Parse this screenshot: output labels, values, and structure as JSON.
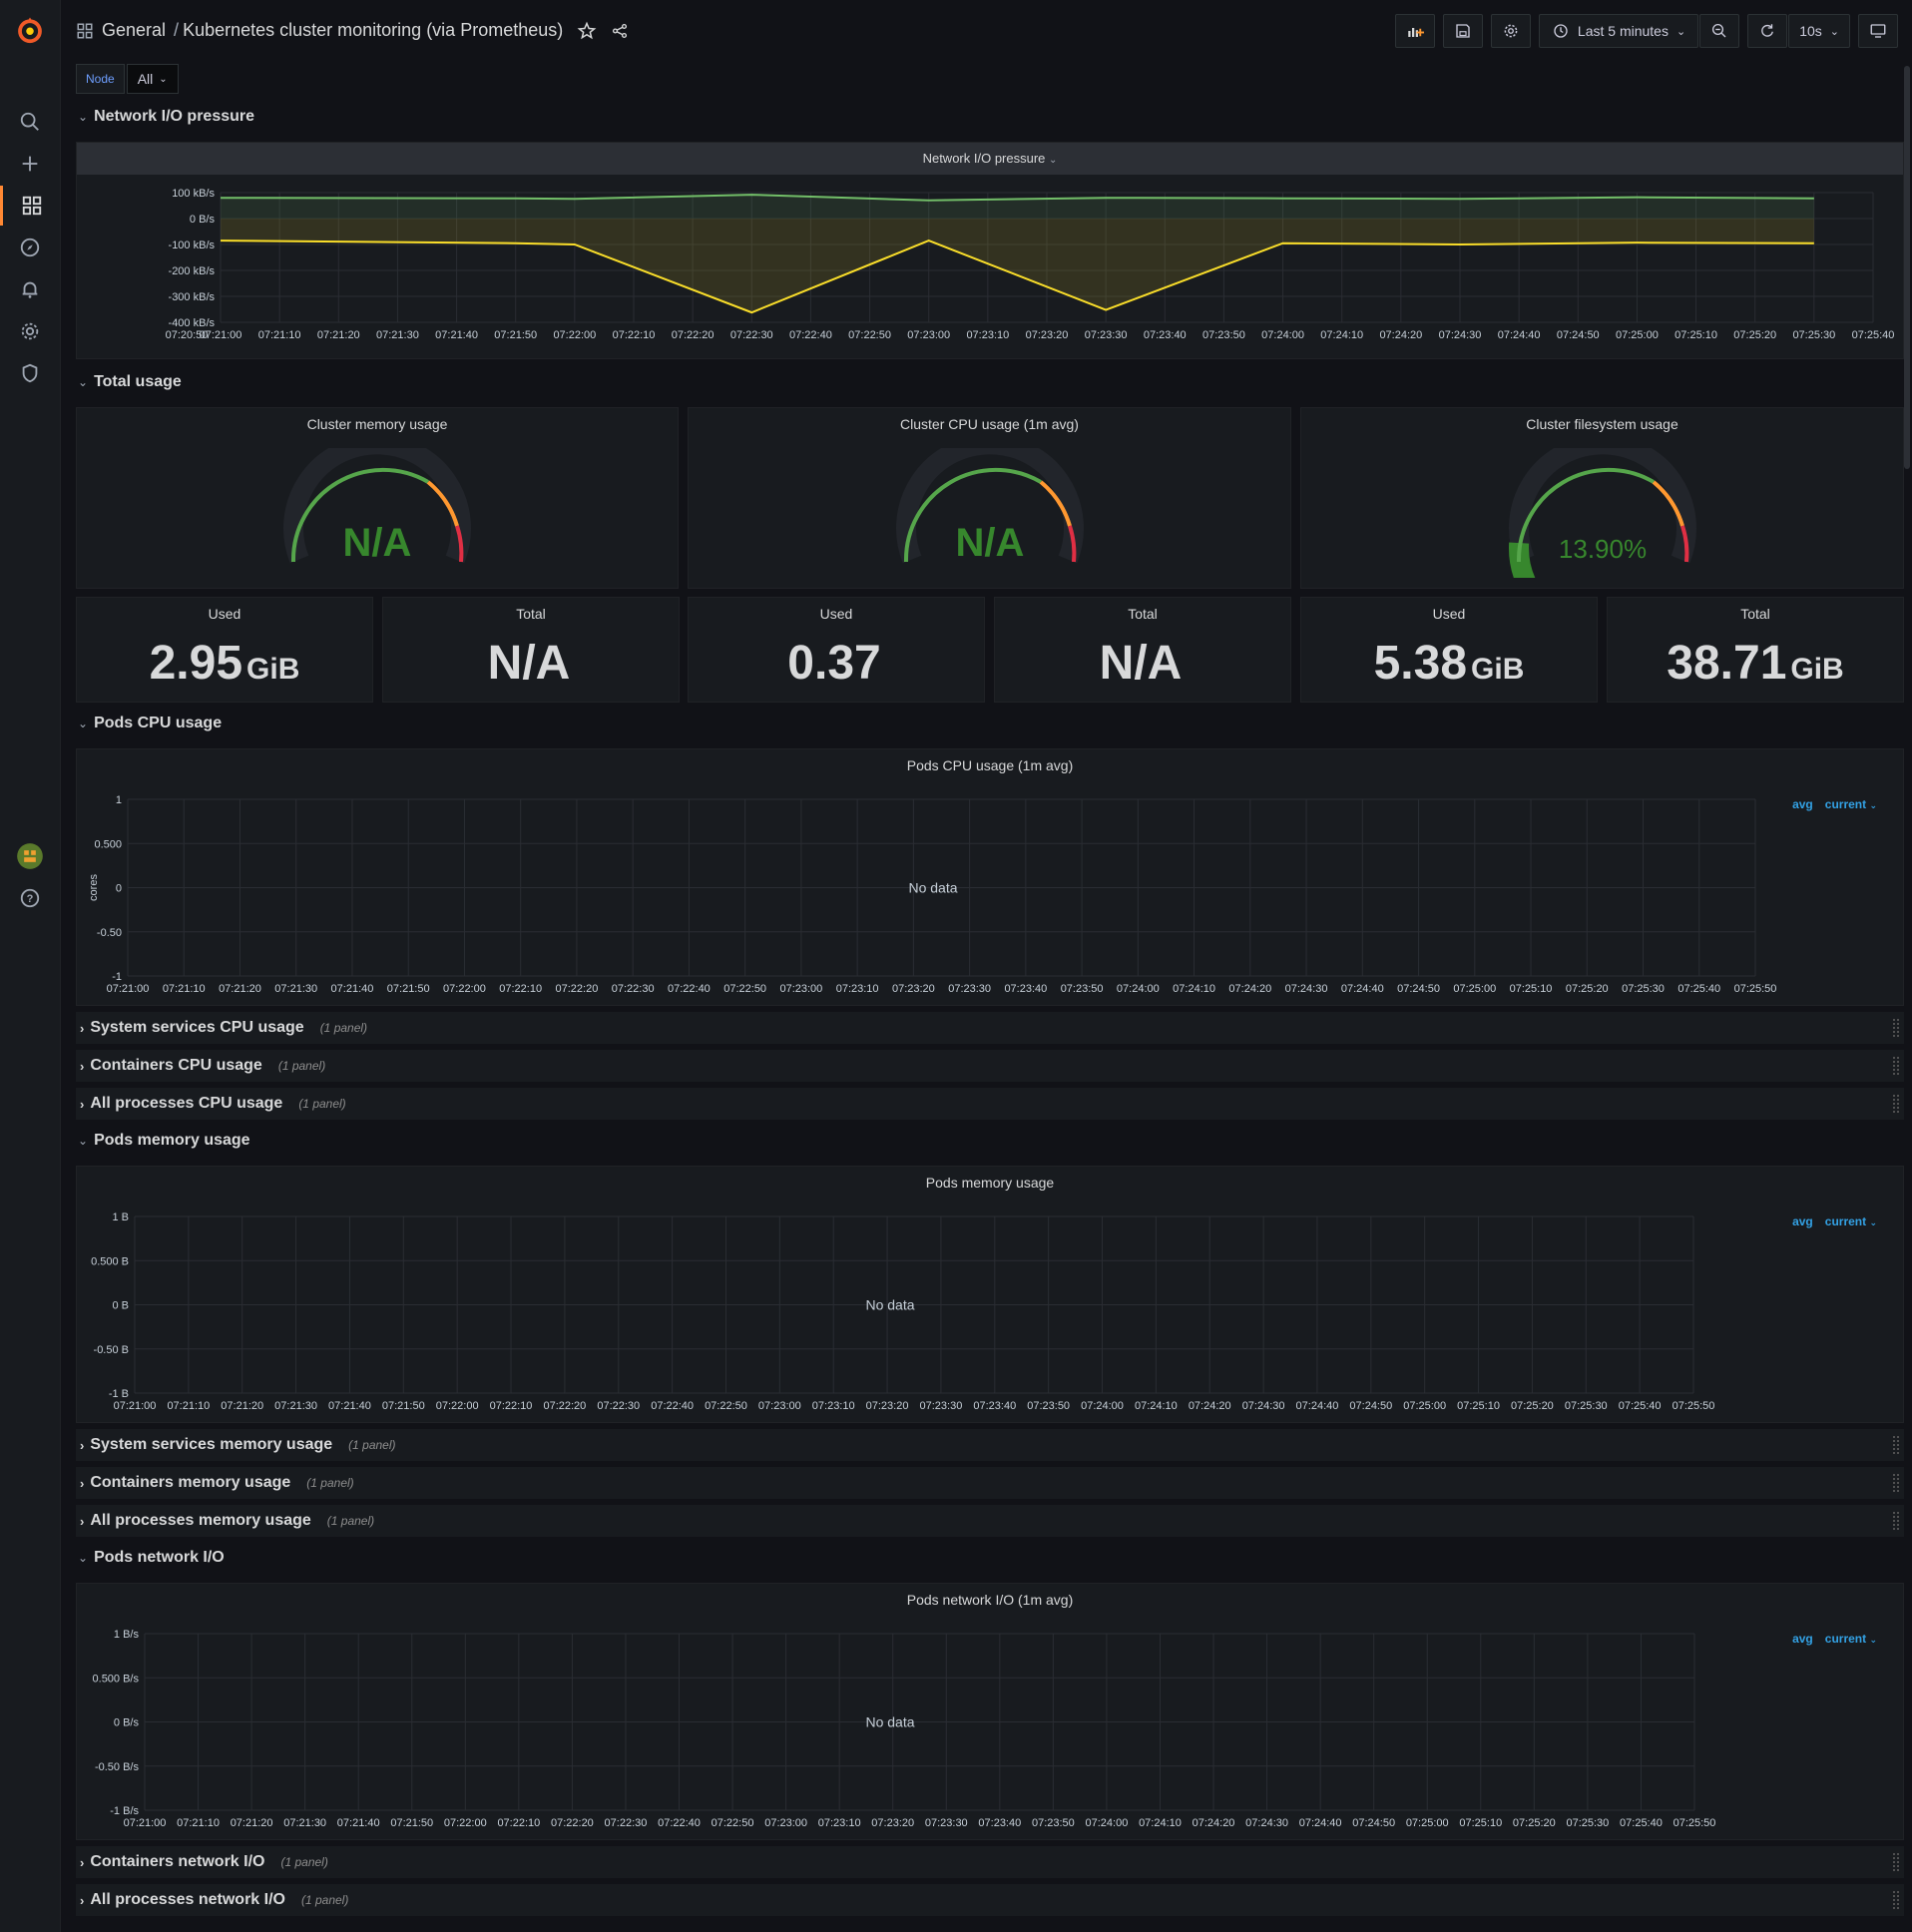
{
  "breadcrumb": {
    "folder": "General",
    "separator": "/",
    "dashboard": "Kubernetes cluster monitoring (via Prometheus)"
  },
  "toolbar": {
    "time_range": "Last 5 minutes",
    "refresh_interval": "10s"
  },
  "variables": {
    "node_label": "Node",
    "node_value": "All"
  },
  "rows": {
    "network": "Network I/O pressure",
    "total": "Total usage",
    "pods_cpu": "Pods CPU usage",
    "system_cpu": "System services CPU usage",
    "containers_cpu": "Containers CPU usage",
    "all_cpu": "All processes CPU usage",
    "pods_mem": "Pods memory usage",
    "system_mem": "System services memory usage",
    "containers_mem": "Containers memory usage",
    "all_mem": "All processes memory usage",
    "pods_net": "Pods network I/O",
    "containers_net": "Containers network I/O",
    "all_net": "All processes network I/O",
    "panel_count": "(1 panel)"
  },
  "panels": {
    "network_title": "Network I/O pressure",
    "mem_gauge_title": "Cluster memory usage",
    "mem_gauge_value": "N/A",
    "cpu_gauge_title": "Cluster CPU usage (1m avg)",
    "cpu_gauge_value": "N/A",
    "fs_gauge_title": "Cluster filesystem usage",
    "fs_gauge_value": "13.90%",
    "fs_gauge_percent": 13.9,
    "pods_cpu_title": "Pods CPU usage (1m avg)",
    "pods_mem_title": "Pods memory usage",
    "pods_net_title": "Pods network I/O (1m avg)",
    "no_data": "No data",
    "legend_avg": "avg",
    "legend_current": "current"
  },
  "stats": [
    {
      "title": "Used",
      "value": "2.95",
      "unit": "GiB"
    },
    {
      "title": "Total",
      "value": "N/A",
      "unit": ""
    },
    {
      "title": "Used",
      "value": "0.37",
      "unit": ""
    },
    {
      "title": "Total",
      "value": "N/A",
      "unit": ""
    },
    {
      "title": "Used",
      "value": "5.38",
      "unit": "GiB"
    },
    {
      "title": "Total",
      "value": "38.71",
      "unit": "GiB"
    }
  ],
  "colors": {
    "green": "#73bf69",
    "yellow": "#fade2a",
    "orange": "#ff9830",
    "red": "#f2495c",
    "link": "#33a2e5",
    "gauge_text": "#37872d"
  },
  "chart_data": [
    {
      "type": "line",
      "title": "Network I/O pressure",
      "x": [
        "07:20:50",
        "07:21:00",
        "07:21:10",
        "07:21:20",
        "07:21:30",
        "07:21:40",
        "07:21:50",
        "07:22:00",
        "07:22:10",
        "07:22:20",
        "07:22:30",
        "07:22:40",
        "07:22:50",
        "07:23:00",
        "07:23:10",
        "07:23:20",
        "07:23:30",
        "07:23:40",
        "07:23:50",
        "07:24:00",
        "07:24:10",
        "07:24:20",
        "07:24:30",
        "07:24:40",
        "07:24:50",
        "07:25:00",
        "07:25:10",
        "07:25:20",
        "07:25:30",
        "07:25:40"
      ],
      "yticks": [
        "100 kB/s",
        "0 B/s",
        "-100 kB/s",
        "-200 kB/s",
        "-300 kB/s",
        "-400 kB/s"
      ],
      "ylim": [
        -400,
        100
      ],
      "series": [
        {
          "color": "#73bf69",
          "x": [
            "07:20:50",
            "07:21:50",
            "07:22:00",
            "07:22:30",
            "07:23:00",
            "07:23:30",
            "07:24:00",
            "07:24:30",
            "07:25:00",
            "07:25:30"
          ],
          "values": [
            80,
            78,
            76,
            92,
            70,
            80,
            78,
            76,
            82,
            78
          ]
        },
        {
          "color": "#fade2a",
          "x": [
            "07:20:50",
            "07:21:50",
            "07:22:00",
            "07:22:30",
            "07:23:00",
            "07:23:30",
            "07:24:00",
            "07:24:30",
            "07:25:00",
            "07:25:30"
          ],
          "values": [
            -85,
            -95,
            -100,
            -362,
            -85,
            -352,
            -95,
            -100,
            -93,
            -95
          ]
        }
      ]
    },
    {
      "type": "line",
      "title": "Pods CPU usage (1m avg)",
      "ylabel": "cores",
      "yticks": [
        "1",
        "0.500",
        "0",
        "-0.50",
        "-1"
      ],
      "x": [
        "07:21:00",
        "07:21:10",
        "07:21:20",
        "07:21:30",
        "07:21:40",
        "07:21:50",
        "07:22:00",
        "07:22:10",
        "07:22:20",
        "07:22:30",
        "07:22:40",
        "07:22:50",
        "07:23:00",
        "07:23:10",
        "07:23:20",
        "07:23:30",
        "07:23:40",
        "07:23:50",
        "07:24:00",
        "07:24:10",
        "07:24:20",
        "07:24:30",
        "07:24:40",
        "07:24:50",
        "07:25:00",
        "07:25:10",
        "07:25:20",
        "07:25:30",
        "07:25:40",
        "07:25:50"
      ],
      "series": []
    },
    {
      "type": "line",
      "title": "Pods memory usage",
      "yticks": [
        "1 B",
        "0.500 B",
        "0 B",
        "-0.50 B",
        "-1 B"
      ],
      "x": [
        "07:21:00",
        "07:21:10",
        "07:21:20",
        "07:21:30",
        "07:21:40",
        "07:21:50",
        "07:22:00",
        "07:22:10",
        "07:22:20",
        "07:22:30",
        "07:22:40",
        "07:22:50",
        "07:23:00",
        "07:23:10",
        "07:23:20",
        "07:23:30",
        "07:23:40",
        "07:23:50",
        "07:24:00",
        "07:24:10",
        "07:24:20",
        "07:24:30",
        "07:24:40",
        "07:24:50",
        "07:25:00",
        "07:25:10",
        "07:25:20",
        "07:25:30",
        "07:25:40",
        "07:25:50"
      ],
      "series": []
    },
    {
      "type": "line",
      "title": "Pods network I/O (1m avg)",
      "yticks": [
        "1 B/s",
        "0.500 B/s",
        "0 B/s",
        "-0.50 B/s",
        "-1 B/s"
      ],
      "x": [
        "07:21:00",
        "07:21:10",
        "07:21:20",
        "07:21:30",
        "07:21:40",
        "07:21:50",
        "07:22:00",
        "07:22:10",
        "07:22:20",
        "07:22:30",
        "07:22:40",
        "07:22:50",
        "07:23:00",
        "07:23:10",
        "07:23:20",
        "07:23:30",
        "07:23:40",
        "07:23:50",
        "07:24:00",
        "07:24:10",
        "07:24:20",
        "07:24:30",
        "07:24:40",
        "07:24:50",
        "07:25:00",
        "07:25:10",
        "07:25:20",
        "07:25:30",
        "07:25:40",
        "07:25:50"
      ],
      "series": []
    }
  ]
}
